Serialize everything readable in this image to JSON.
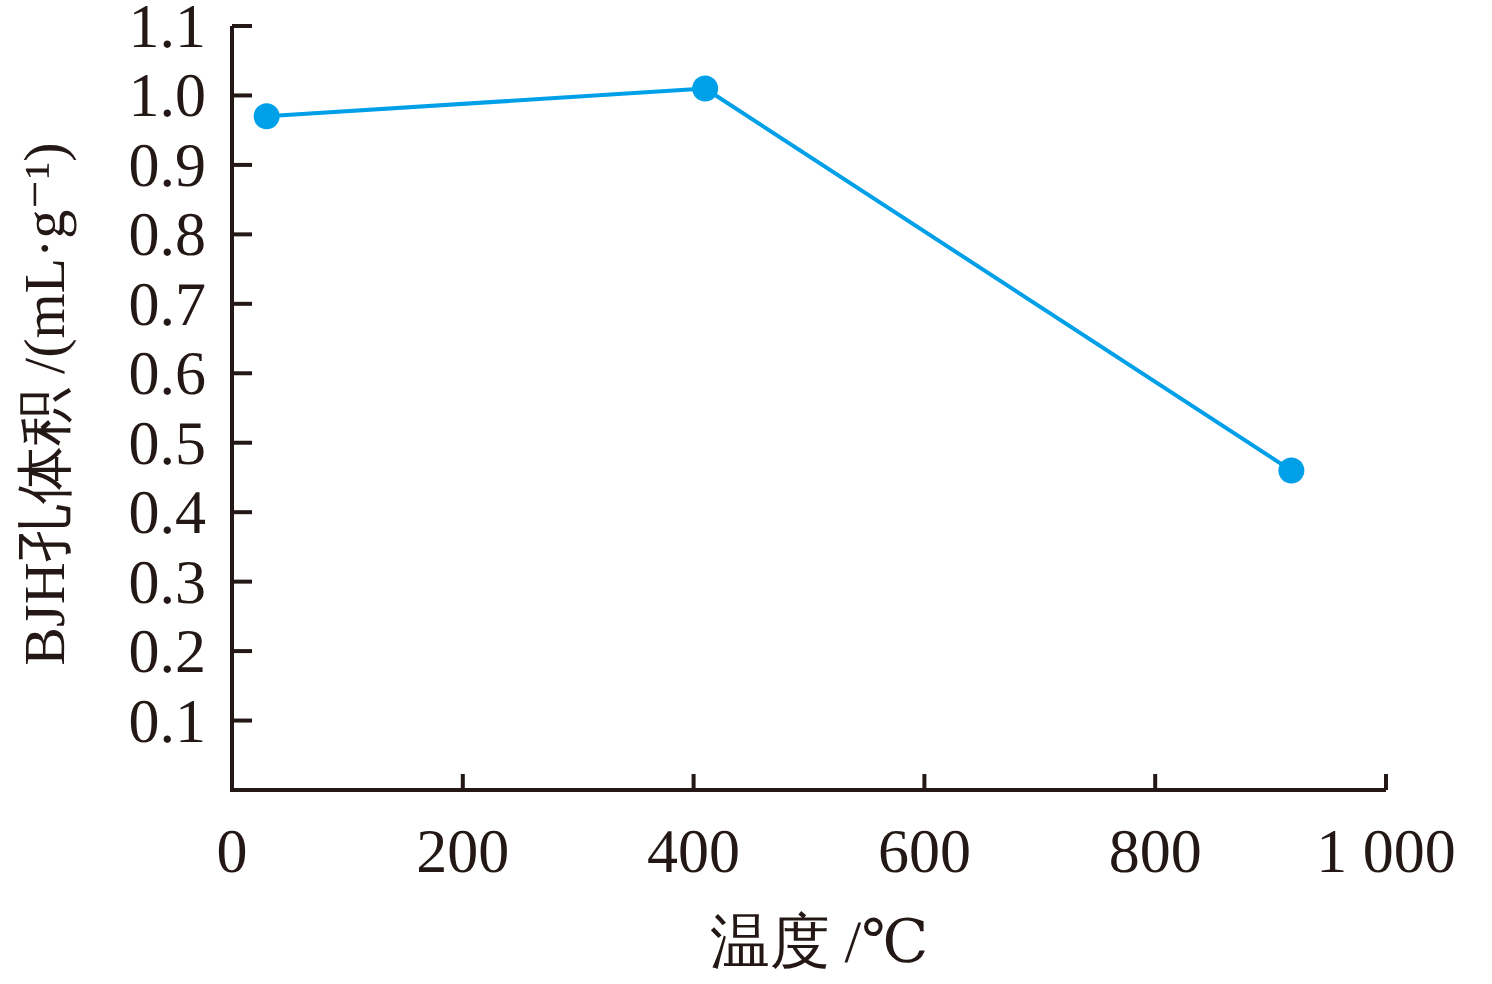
{
  "chart_data": {
    "type": "line",
    "xlabel": "温度 /℃",
    "ylabel": "BJH孔体积 /(mL·g⁻¹)",
    "x": [
      30,
      410,
      918
    ],
    "series": [
      {
        "color": "#00a0e9",
        "values": [
          0.97,
          1.01,
          0.46
        ]
      }
    ],
    "xlim": [
      0,
      1000
    ],
    "ylim": [
      0,
      1.1
    ],
    "xticks": [
      {
        "value": 0,
        "label": "0"
      },
      200,
      400,
      600,
      800,
      {
        "value": 1000,
        "label": "1 000"
      }
    ],
    "yticks": [
      0.1,
      0.2,
      0.3,
      0.4,
      0.5,
      0.6,
      0.7,
      0.8,
      0.9,
      {
        "value": 1,
        "label": "1.0"
      },
      1.1
    ],
    "marker": "circle",
    "line_style": "solid"
  }
}
